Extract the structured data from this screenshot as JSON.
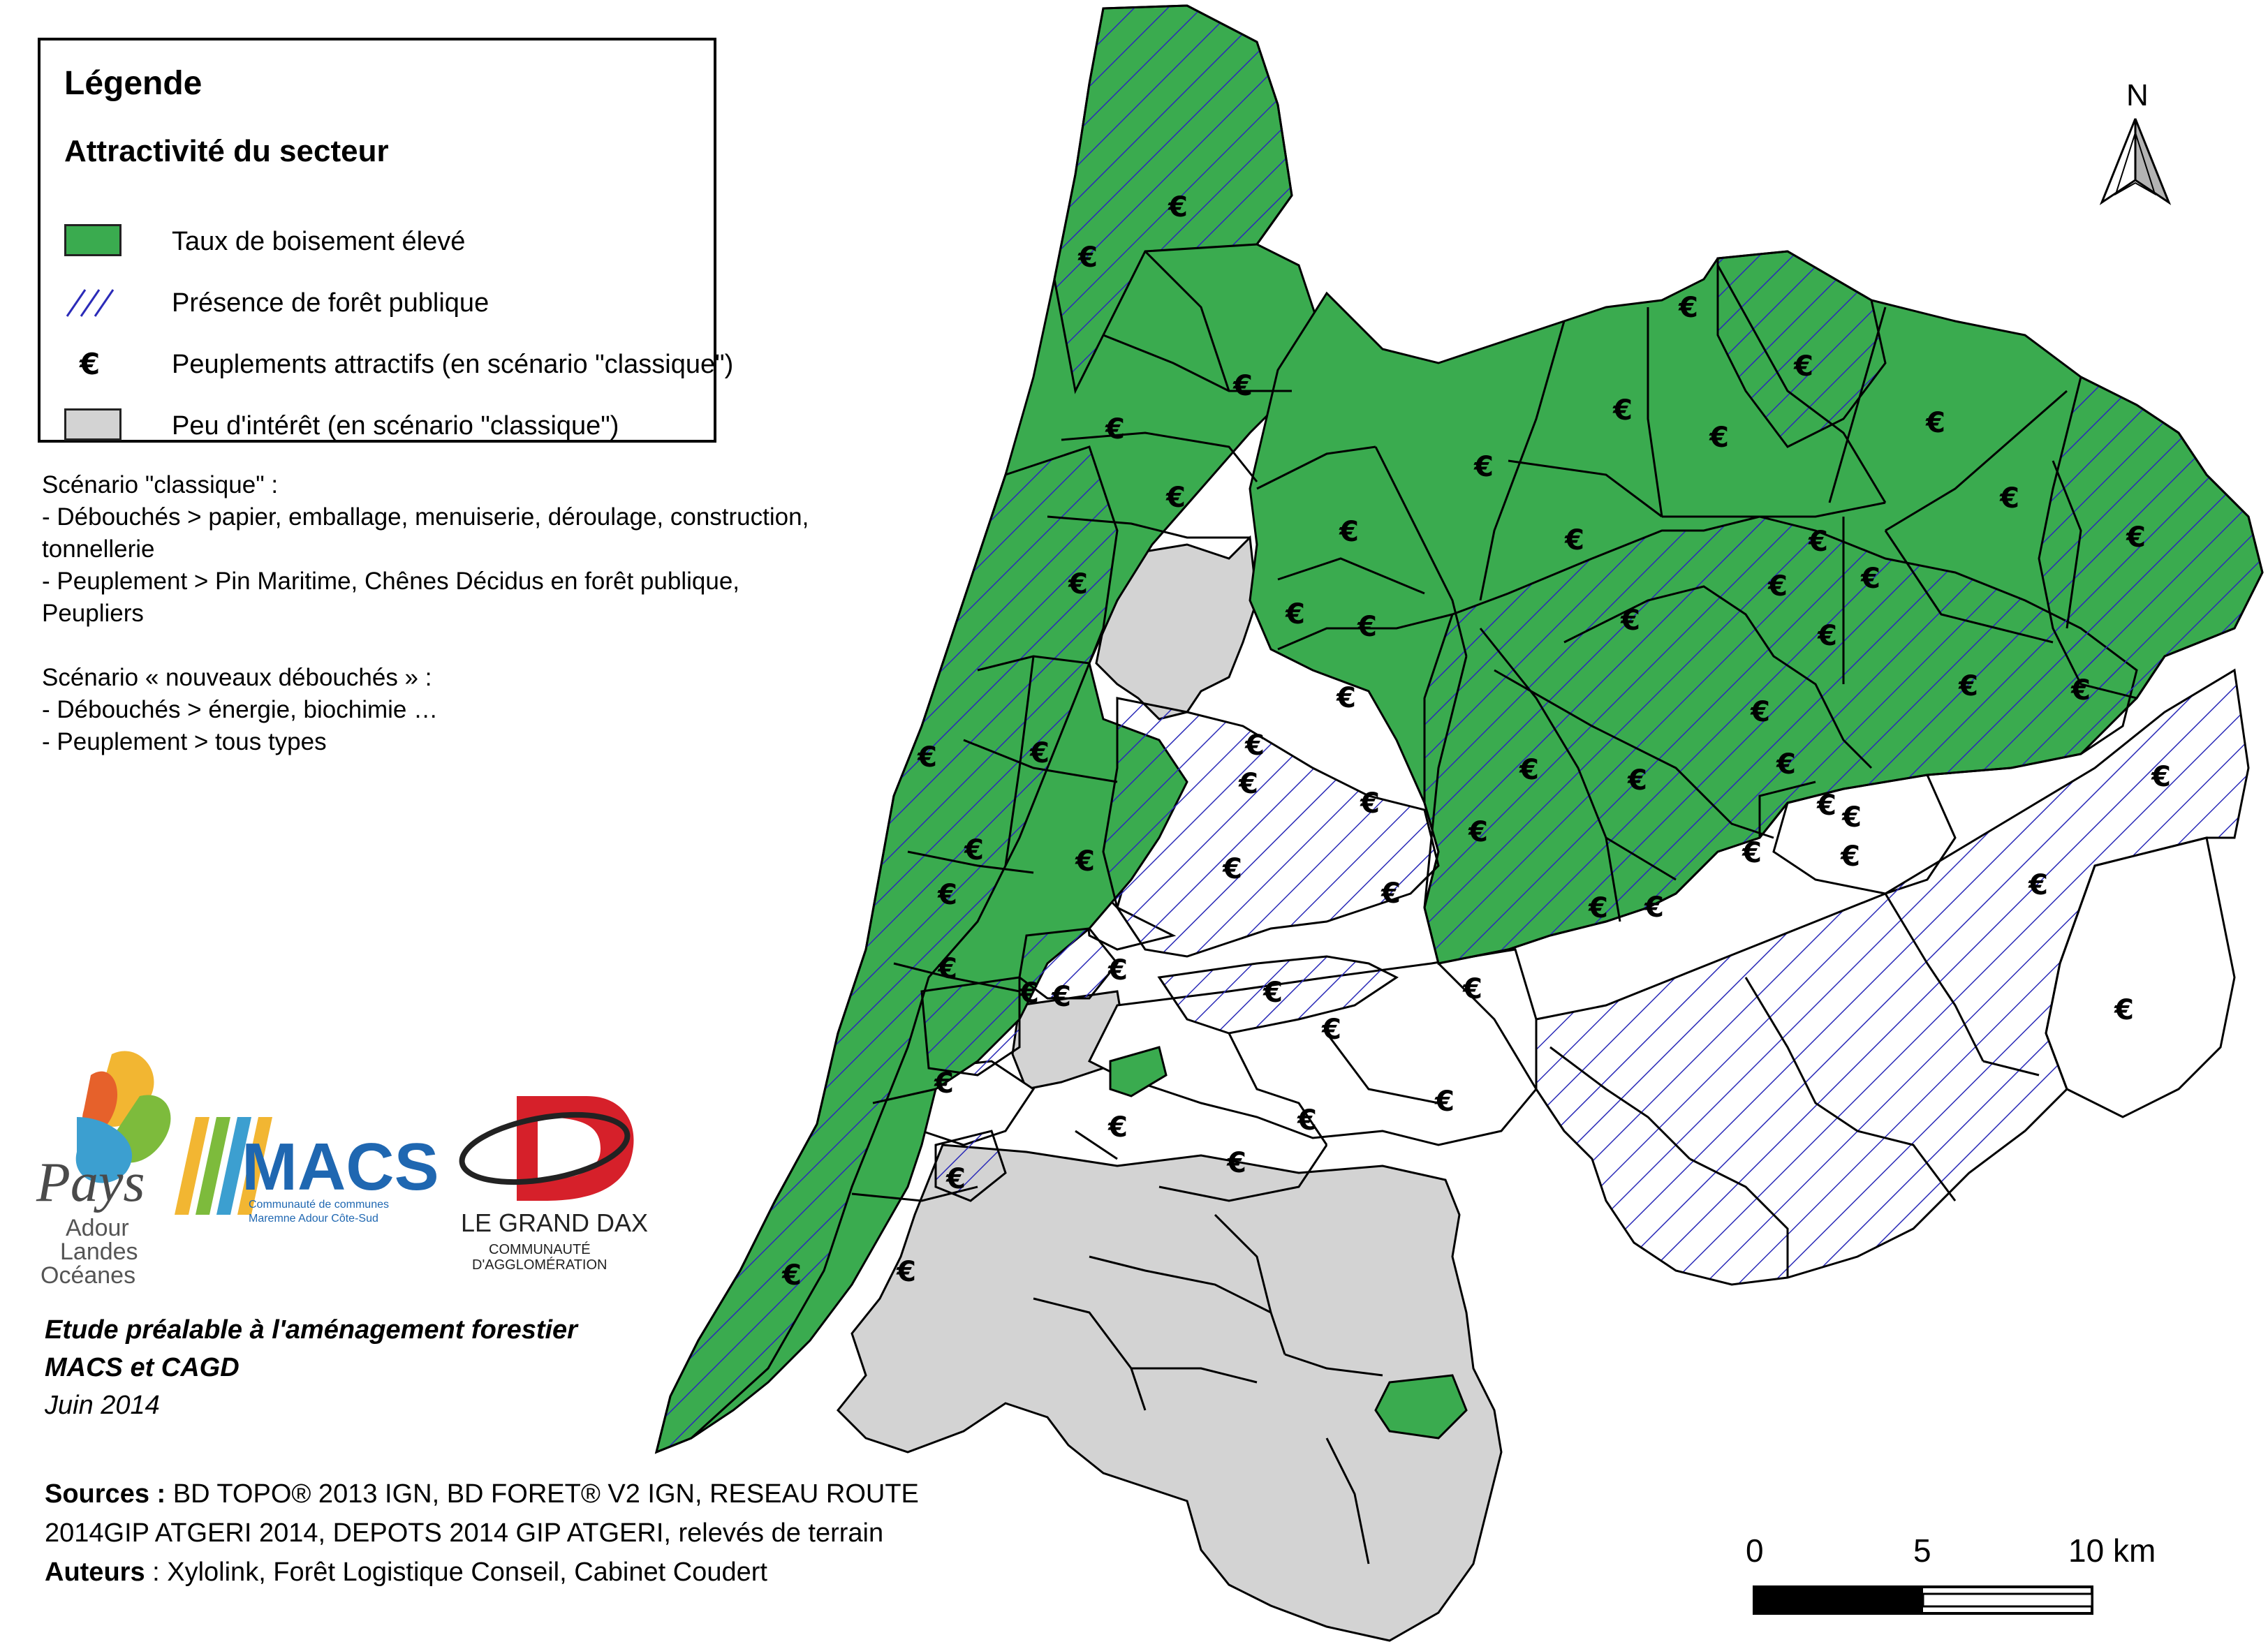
{
  "legend": {
    "title": "Légende",
    "subtitle": "Attractivité du secteur",
    "items": [
      {
        "label": "Taux de boisement élevé",
        "symbol": "green-fill",
        "color": "#3aab4f"
      },
      {
        "label": "Présence de forêt publique",
        "symbol": "blue-hatch",
        "color": "#2b2bb8"
      },
      {
        "label": "Peuplements attractifs (en scénario \"classique\")",
        "symbol": "€"
      },
      {
        "label": "Peu d'intérêt (en scénario \"classique\")",
        "symbol": "grey-fill",
        "color": "#d3d3d3"
      }
    ]
  },
  "scenario_classique": [
    "Scénario \"classique\" :",
    "- Débouchés  > papier, emballage, menuiserie, déroulage, construction,",
    "tonnellerie",
    "- Peuplement >  Pin Maritime, Chênes Décidus en forêt publique,",
    "Peupliers"
  ],
  "scenario_nouveaux": [
    "Scénario « nouveaux débouchés » :",
    "- Débouchés > énergie, biochimie …",
    "- Peuplement > tous types"
  ],
  "logos": {
    "pays_line1": "Pays",
    "pays_line2": "Adour",
    "pays_line3": "Landes",
    "pays_line4": "Océanes",
    "macs_name": "MACS",
    "macs_line1": "Communauté de communes",
    "macs_line2": "Maremne Adour Côte-Sud",
    "dax_name1": "LE GRAND DAX",
    "dax_line1": "COMMUNAUTÉ",
    "dax_line2": "D'AGGLOMÉRATION"
  },
  "study": {
    "line1": "Etude préalable à l'aménagement forestier",
    "line2": "MACS et CAGD",
    "date": "Juin 2014"
  },
  "sources": {
    "sources_label": "Sources :",
    "sources_text1": " BD TOPO® 2013 IGN, BD FORET® V2 IGN, RESEAU ROUTE",
    "sources_text2": "2014GIP ATGERI 2014, DEPOTS 2014 GIP ATGERI, relevés de terrain",
    "authors_label": "Auteurs",
    "authors_text": " : Xylolink, Forêt Logistique Conseil, Cabinet Coudert"
  },
  "north": "N",
  "scale": {
    "t0": "0",
    "t1": "5",
    "t2": "10 km"
  },
  "euro_symbol": "€",
  "colors": {
    "green": "#3aab4f",
    "grey": "#d3d3d3",
    "hatch": "#2b2bb8",
    "red_logo": "#d6202a",
    "blue_logo": "#1f67b1"
  }
}
